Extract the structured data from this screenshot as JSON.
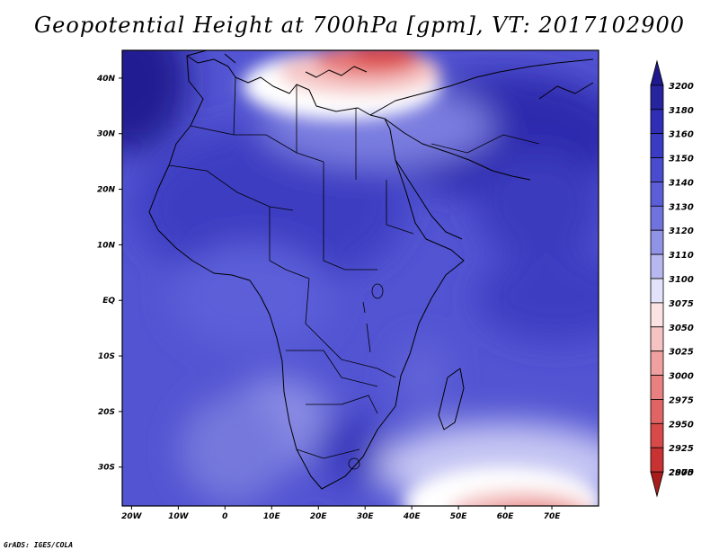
{
  "title": "Geopotential Height at 700hPa [gpm], VT: 2017102900",
  "footer": "GrADS: IGES/COLA",
  "map": {
    "lat_range": [
      -37,
      45
    ],
    "lon_range": [
      -22,
      80
    ],
    "lat_ticks": [
      {
        "value": 40,
        "label": "40N"
      },
      {
        "value": 30,
        "label": "30N"
      },
      {
        "value": 20,
        "label": "20N"
      },
      {
        "value": 10,
        "label": "10N"
      },
      {
        "value": 0,
        "label": "EQ"
      },
      {
        "value": -10,
        "label": "10S"
      },
      {
        "value": -20,
        "label": "20S"
      },
      {
        "value": -30,
        "label": "30S"
      }
    ],
    "lon_ticks": [
      {
        "value": -20,
        "label": "20W"
      },
      {
        "value": -10,
        "label": "10W"
      },
      {
        "value": 0,
        "label": "0"
      },
      {
        "value": 10,
        "label": "10E"
      },
      {
        "value": 20,
        "label": "20E"
      },
      {
        "value": 30,
        "label": "30E"
      },
      {
        "value": 40,
        "label": "40E"
      },
      {
        "value": 50,
        "label": "50E"
      },
      {
        "value": 60,
        "label": "60E"
      },
      {
        "value": 70,
        "label": "70E"
      }
    ]
  },
  "colorbar": {
    "levels": [
      {
        "label": "3200",
        "color": "#1e1a8c"
      },
      {
        "label": "3180",
        "color": "#2724a0"
      },
      {
        "label": "3160",
        "color": "#302eb4"
      },
      {
        "label": "3150",
        "color": "#3b3cc4"
      },
      {
        "label": "3140",
        "color": "#4a4cce"
      },
      {
        "label": "3130",
        "color": "#5b5ed6"
      },
      {
        "label": "3120",
        "color": "#7173dd"
      },
      {
        "label": "3110",
        "color": "#9193e6"
      },
      {
        "label": "3100",
        "color": "#b7b8f0"
      },
      {
        "label": "3075",
        "color": "#e2e2fa"
      },
      {
        "label": "3050",
        "color": "#fbe3e3"
      },
      {
        "label": "3025",
        "color": "#f6c3c3"
      },
      {
        "label": "3000",
        "color": "#efa0a0"
      },
      {
        "label": "2975",
        "color": "#e88080"
      },
      {
        "label": "2950",
        "color": "#e06464"
      },
      {
        "label": "2925",
        "color": "#d84a4a"
      },
      {
        "label": "2900",
        "color": "#c83232"
      },
      {
        "label": "2875",
        "color": "#a81c1c"
      }
    ]
  }
}
